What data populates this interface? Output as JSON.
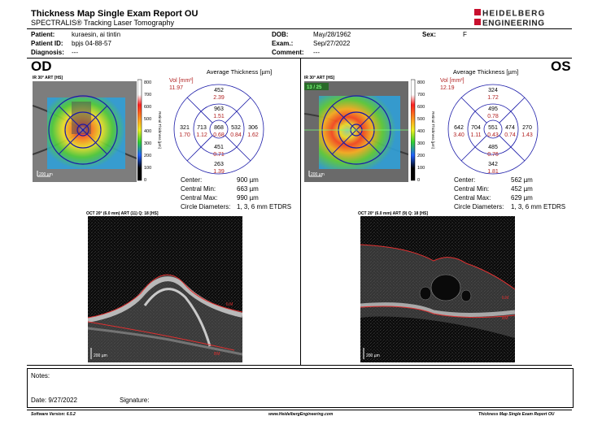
{
  "header": {
    "title": "Thickness Map Single Exam Report OU",
    "subtitle": "SPECTRALIS® Tracking Laser Tomography",
    "logo_line1": "HEIDELBERG",
    "logo_line2": "ENGINEERING"
  },
  "patient": {
    "patient_label": "Patient:",
    "patient_value": "kuraesin, ai tintin",
    "id_label": "Patient ID:",
    "id_value": "bpjs 04-88-57",
    "diagnosis_label": "Diagnosis:",
    "diagnosis_value": "---",
    "dob_label": "DOB:",
    "dob_value": "May/28/1962",
    "exam_label": "Exam.:",
    "exam_value": "Sep/27/2022",
    "comment_label": "Comment:",
    "comment_value": "---",
    "sex_label": "Sex:",
    "sex_value": "F"
  },
  "od": {
    "eye_label": "OD",
    "ir_caption": "IR 30° ART [HS]",
    "scale_label": "200 µm",
    "colorbar_ticks": [
      "800",
      "700",
      "600",
      "500",
      "400",
      "300",
      "200",
      "100",
      "0"
    ],
    "colorbar_title": "Retinal Thickness [µm]",
    "grid_title": "Average Thickness [µm]",
    "vol_label": "Vol [mm³]",
    "vol_value": "11.97",
    "grid": {
      "top_outer": "452",
      "top_outer_vol": "2.39",
      "top_inner": "963",
      "top_inner_vol": "1.51",
      "left_outer": "321",
      "left_outer_vol": "1.70",
      "left_inner": "713",
      "left_inner_vol": "1.12",
      "center": "868",
      "center_vol": "0.68",
      "right_inner": "532",
      "right_inner_vol": "0.84",
      "right_outer": "306",
      "right_outer_vol": "1.62",
      "bottom_inner": "451",
      "bottom_inner_vol": "0.71",
      "bottom_outer": "263",
      "bottom_outer_vol": "1.39"
    },
    "stats": {
      "center_label": "Center:",
      "center_value": "900 µm",
      "cmin_label": "Central Min:",
      "cmin_value": "663 µm",
      "cmax_label": "Central Max:",
      "cmax_value": "990 µm",
      "circ_label": "Circle Diameters:",
      "circ_value": "1, 3, 6 mm ETDRS"
    },
    "oct_caption": "OCT 20° (6.0 mm) ART (11) Q: 18 [HS]",
    "ilm_label": "ILM",
    "bm_label": "BM",
    "oct_scale_label": "200 µm"
  },
  "os": {
    "eye_label": "OS",
    "ir_caption": "IR 30° ART [HS]",
    "ir_overlay": "13 / 25",
    "scale_label": "200 µm",
    "colorbar_ticks": [
      "800",
      "700",
      "600",
      "500",
      "400",
      "300",
      "200",
      "100",
      "0"
    ],
    "colorbar_title": "Retinal Thickness [µm]",
    "grid_title": "Average Thickness [µm]",
    "vol_label": "Vol [mm³]",
    "vol_value": "12.19",
    "grid": {
      "top_outer": "324",
      "top_outer_vol": "1.72",
      "top_inner": "495",
      "top_inner_vol": "0.78",
      "left_outer": "642",
      "left_outer_vol": "3.40",
      "left_inner": "704",
      "left_inner_vol": "1.11",
      "center": "551",
      "center_vol": "0.43",
      "right_inner": "474",
      "right_inner_vol": "0.74",
      "right_outer": "270",
      "right_outer_vol": "1.43",
      "bottom_inner": "485",
      "bottom_inner_vol": "0.76",
      "bottom_outer": "342",
      "bottom_outer_vol": "1.81"
    },
    "stats": {
      "center_label": "Center:",
      "center_value": "562 µm",
      "cmin_label": "Central Min:",
      "cmin_value": "452 µm",
      "cmax_label": "Central Max:",
      "cmax_value": "629 µm",
      "circ_label": "Circle Diameters:",
      "circ_value": "1, 3, 6 mm ETDRS"
    },
    "oct_caption": "OCT 20° (6.0 mm) ART (9) Q: 18 [HS]",
    "ilm_label": "ILM",
    "bm_label": "BM",
    "oct_scale_label": "200 µm"
  },
  "notes": {
    "notes_label": "Notes:",
    "date_label": "Date: 9/27/2022",
    "signature_label": "Signature:"
  },
  "footer": {
    "software": "Software Version: 6.5.2",
    "website": "www.HeidelbergEngineering.com",
    "report_name": "Thickness Map Single Exam Report OU"
  },
  "colors": {
    "accent_red": "#b22222",
    "grid_blue": "#1a1aa8",
    "logo_red": "#c8102e"
  }
}
